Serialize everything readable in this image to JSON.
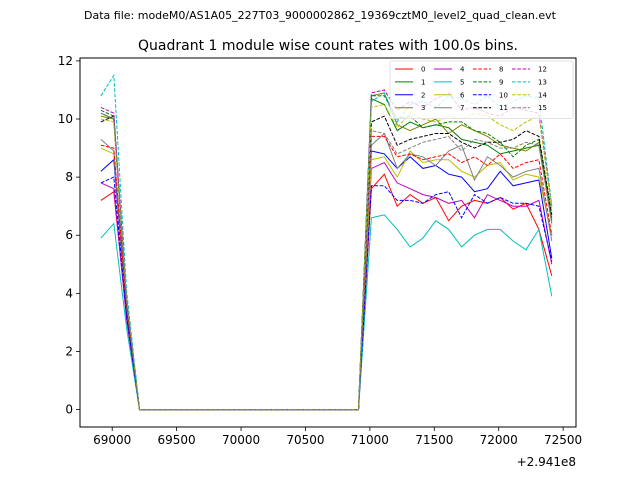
{
  "suptitle": "Data file: modeM0/AS1A05_227T03_9000002862_19369cztM0_level2_quad_clean.evt",
  "chart_data": {
    "type": "line",
    "title": "Quadrant 1 module wise count rates with 100.0s bins.",
    "xlabel": "",
    "ylabel": "",
    "x_offset_label": "+2.941e8",
    "xlim": [
      68750,
      72600
    ],
    "ylim": [
      -0.6,
      12.1
    ],
    "xticks": [
      69000,
      69500,
      70000,
      70500,
      71000,
      71500,
      72000,
      72500
    ],
    "xtick_labels": [
      "69000",
      "69500",
      "70000",
      "70500",
      "71000",
      "71500",
      "72000",
      "72500"
    ],
    "yticks": [
      0,
      2,
      4,
      6,
      8,
      10,
      12
    ],
    "ytick_labels": [
      "0",
      "2",
      "4",
      "6",
      "8",
      "10",
      "12"
    ],
    "grid": false,
    "legend_position": "upper-right",
    "legend_columns": 4,
    "x": [
      68912,
      69012,
      69112,
      69212,
      70912,
      71012,
      71112,
      71212,
      71312,
      71412,
      71512,
      71612,
      71712,
      71812,
      71912,
      72012,
      72112,
      72212,
      72312,
      72412
    ],
    "series": [
      {
        "name": "0",
        "color": "#ff0000",
        "dash": "solid",
        "values": [
          7.2,
          7.5,
          3.2,
          0,
          0,
          7.6,
          8.1,
          7.0,
          7.4,
          7.1,
          7.3,
          6.5,
          7.0,
          7.2,
          7.1,
          7.3,
          6.9,
          7.1,
          6.2,
          4.6
        ]
      },
      {
        "name": "1",
        "color": "#008000",
        "dash": "solid",
        "values": [
          10.2,
          10.0,
          3.8,
          0,
          0,
          10.7,
          10.5,
          9.6,
          9.9,
          9.7,
          9.8,
          9.7,
          9.3,
          9.2,
          9.1,
          8.8,
          8.9,
          9.0,
          9.1,
          6.5
        ]
      },
      {
        "name": "2",
        "color": "#0000ff",
        "dash": "solid",
        "values": [
          8.2,
          8.6,
          3.4,
          0,
          0,
          8.9,
          8.8,
          8.3,
          8.7,
          8.3,
          8.4,
          8.1,
          8.0,
          7.5,
          7.6,
          8.2,
          7.7,
          7.8,
          7.9,
          5.2
        ]
      },
      {
        "name": "3",
        "color": "#808000",
        "dash": "solid",
        "values": [
          10.1,
          10.0,
          3.7,
          0,
          0,
          10.8,
          10.9,
          9.8,
          9.6,
          9.8,
          10.0,
          9.5,
          9.8,
          9.6,
          9.4,
          9.1,
          9.0,
          8.9,
          9.2,
          6.4
        ]
      },
      {
        "name": "4",
        "color": "#bf00bf",
        "dash": "solid",
        "values": [
          7.8,
          7.6,
          3.1,
          0,
          0,
          8.3,
          8.5,
          7.8,
          7.6,
          7.4,
          7.3,
          7.1,
          7.2,
          6.6,
          7.4,
          7.2,
          7.0,
          7.0,
          7.2,
          5.0
        ]
      },
      {
        "name": "5",
        "color": "#00bfbf",
        "dash": "solid",
        "values": [
          5.9,
          6.4,
          2.8,
          0,
          0,
          6.6,
          6.7,
          6.2,
          5.6,
          5.9,
          6.5,
          6.2,
          5.6,
          6.0,
          6.2,
          6.2,
          5.8,
          5.5,
          6.2,
          3.9
        ]
      },
      {
        "name": "6",
        "color": "#bfbf00",
        "dash": "solid",
        "values": [
          9.0,
          8.8,
          3.5,
          0,
          0,
          8.6,
          8.7,
          8.0,
          8.9,
          8.5,
          8.6,
          8.6,
          8.2,
          8.0,
          8.4,
          8.5,
          7.9,
          8.1,
          8.0,
          6.0
        ]
      },
      {
        "name": "7",
        "color": "#808080",
        "dash": "solid",
        "values": [
          9.3,
          8.9,
          3.6,
          0,
          0,
          9.1,
          9.5,
          8.3,
          8.8,
          8.7,
          8.4,
          8.9,
          9.1,
          7.9,
          8.7,
          8.4,
          8.0,
          8.2,
          8.3,
          5.8
        ]
      },
      {
        "name": "8",
        "color": "#ff0000",
        "dash": "dashed",
        "values": [
          9.1,
          9.0,
          3.5,
          0,
          0,
          9.4,
          9.4,
          8.7,
          8.8,
          8.6,
          8.7,
          8.8,
          8.5,
          8.7,
          8.4,
          8.8,
          8.3,
          8.5,
          8.6,
          6.0
        ]
      },
      {
        "name": "9",
        "color": "#008000",
        "dash": "dashed",
        "values": [
          10.3,
          10.1,
          3.8,
          0,
          0,
          10.8,
          10.8,
          10.0,
          10.1,
          9.7,
          9.8,
          9.9,
          9.9,
          9.6,
          9.5,
          9.2,
          8.7,
          9.1,
          9.3,
          6.6
        ]
      },
      {
        "name": "10",
        "color": "#0000ff",
        "dash": "dashed",
        "values": [
          7.8,
          8.0,
          3.2,
          0,
          0,
          7.7,
          7.7,
          7.2,
          7.2,
          7.1,
          7.4,
          7.5,
          6.6,
          7.4,
          7.1,
          7.3,
          7.1,
          7.1,
          7.0,
          5.1
        ]
      },
      {
        "name": "11",
        "color": "#000000",
        "dash": "dashed",
        "values": [
          9.9,
          10.1,
          3.7,
          0,
          0,
          9.9,
          10.1,
          9.1,
          9.3,
          9.4,
          9.5,
          9.5,
          9.2,
          9.0,
          9.2,
          9.2,
          9.3,
          9.6,
          9.4,
          6.7
        ]
      },
      {
        "name": "12",
        "color": "#bf00bf",
        "dash": "dashed",
        "values": [
          10.4,
          10.2,
          3.9,
          0,
          0,
          10.9,
          11.0,
          10.3,
          10.6,
          10.4,
          10.7,
          10.9,
          10.3,
          10.4,
          10.2,
          10.1,
          10.4,
          10.3,
          10.2,
          7.0
        ]
      },
      {
        "name": "13",
        "color": "#00bfbf",
        "dash": "dashed",
        "values": [
          10.8,
          11.5,
          4.1,
          0,
          0,
          10.6,
          10.9,
          9.9,
          10.5,
          10.6,
          10.4,
          10.8,
          10.7,
          10.5,
          10.8,
          10.4,
          10.6,
          10.8,
          10.7,
          7.0
        ]
      },
      {
        "name": "14",
        "color": "#bfbf00",
        "dash": "dashed",
        "values": [
          10.0,
          9.9,
          3.8,
          0,
          0,
          10.4,
          10.5,
          9.7,
          10.2,
          10.0,
          9.9,
          10.1,
          10.0,
          10.2,
          10.1,
          9.8,
          9.6,
          9.9,
          10.1,
          6.9
        ]
      },
      {
        "name": "15",
        "color": "#808080",
        "dash": "dashed",
        "values": [
          10.2,
          10.0,
          3.7,
          0,
          0,
          9.6,
          9.5,
          8.8,
          9.0,
          9.2,
          9.3,
          9.4,
          8.9,
          9.3,
          9.2,
          9.0,
          9.0,
          9.2,
          9.1,
          6.4
        ]
      }
    ]
  }
}
